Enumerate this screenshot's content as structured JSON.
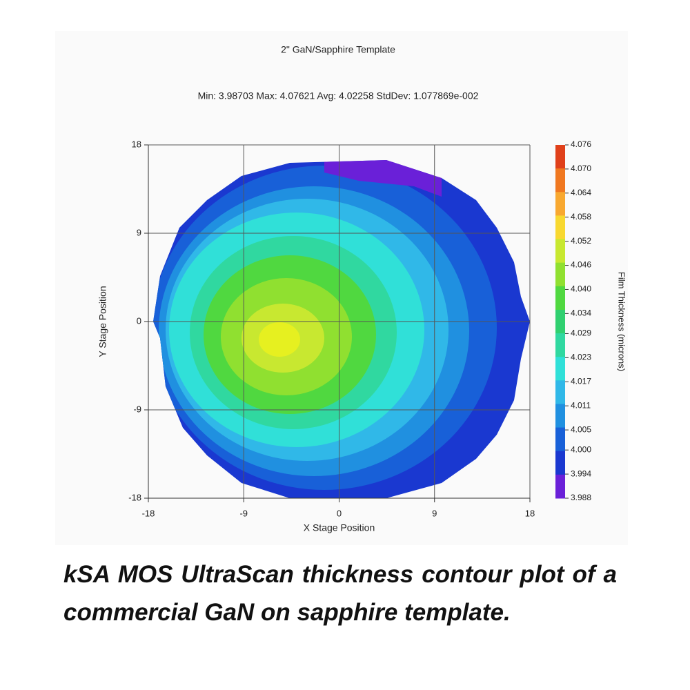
{
  "chart_data": {
    "type": "contour",
    "title": "2\" GaN/Sapphire Template",
    "subtitle": "Min: 3.98703  Max: 4.07621  Avg: 4.02258  StdDev: 1.077869e-002",
    "x_label": "X Stage Position",
    "y_label": "Y Stage Position",
    "xlim": [
      -18,
      18
    ],
    "ylim": [
      -18,
      18
    ],
    "xticks": [
      -18,
      -9,
      0,
      9,
      18
    ],
    "yticks": [
      -18,
      -9,
      0,
      9,
      18
    ],
    "grid": true,
    "colorbar_label": "Film Thickness (microns)",
    "colorbar_ticks": [
      4.076,
      {
        "value": 4.07,
        "label": "4.070"
      },
      4.064,
      4.058,
      4.052,
      4.046,
      {
        "value": 4.04,
        "label": "4.040"
      },
      4.034,
      4.029,
      4.023,
      4.017,
      4.011,
      4.005,
      {
        "value": 4,
        "label": "4.000"
      },
      3.994,
      3.988
    ],
    "colorbar_colors": [
      "#e0401a",
      "#f07820",
      "#f8a830",
      "#f8d830",
      "#c8e830",
      "#90e030",
      "#50d840",
      "#30d070",
      "#30d8a0",
      "#30e0d8",
      "#30b8e8",
      "#2090e0",
      "#1860d8",
      "#1a38d0",
      "#6a20d8"
    ]
  },
  "caption": "kSA MOS UltraScan thickness contour plot of a commercial GaN on sapphire template."
}
